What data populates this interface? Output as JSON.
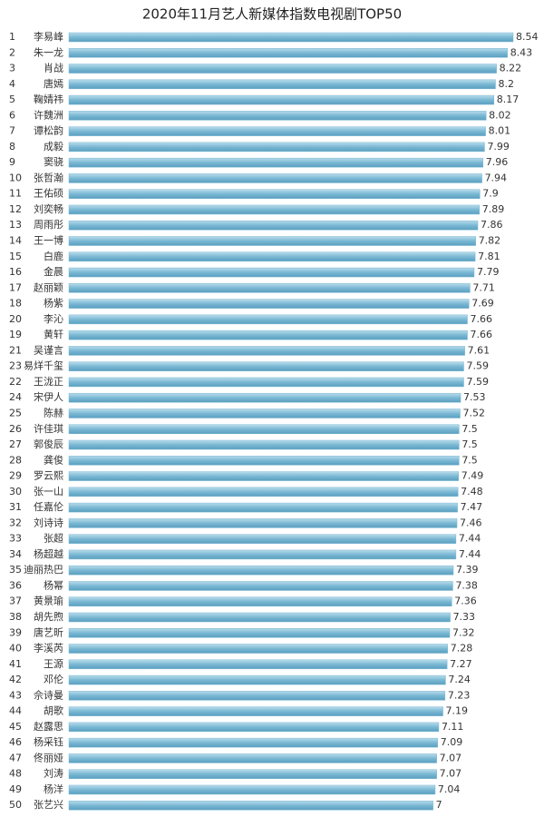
{
  "chart_data": {
    "type": "bar",
    "orientation": "horizontal",
    "title": "2020年11月艺人新媒体指数电视剧TOP50",
    "color": "#7ab8d4",
    "ranks": [
      1,
      2,
      3,
      4,
      5,
      6,
      7,
      8,
      9,
      10,
      11,
      12,
      13,
      14,
      15,
      16,
      17,
      18,
      20,
      19,
      21,
      23,
      22,
      24,
      25,
      26,
      27,
      28,
      29,
      30,
      31,
      32,
      33,
      34,
      35,
      36,
      37,
      38,
      39,
      40,
      41,
      42,
      43,
      44,
      45,
      46,
      47,
      48,
      49,
      50
    ],
    "categories": [
      "李易峰",
      "朱一龙",
      "肖战",
      "唐嫣",
      "鞠婧祎",
      "许魏洲",
      "谭松韵",
      "成毅",
      "窦骁",
      "张哲瀚",
      "王佑硕",
      "刘奕畅",
      "周雨彤",
      "王一博",
      "白鹿",
      "金晨",
      "赵丽颖",
      "杨紫",
      "李沁",
      "黄轩",
      "吴谨言",
      "易烊千玺",
      "王泷正",
      "宋伊人",
      "陈赫",
      "许佳琪",
      "郭俊辰",
      "龚俊",
      "罗云熙",
      "张一山",
      "任嘉伦",
      "刘诗诗",
      "张超",
      "杨超越",
      "迪丽热巴",
      "杨幂",
      "黄景瑜",
      "胡先煦",
      "唐艺昕",
      "李溪芮",
      "王源",
      "邓伦",
      "佘诗曼",
      "胡歌",
      "赵露思",
      "杨采钰",
      "佟丽娅",
      "刘涛",
      "杨洋",
      "张艺兴"
    ],
    "values": [
      8.54,
      8.43,
      8.22,
      8.2,
      8.17,
      8.02,
      8.01,
      7.99,
      7.96,
      7.94,
      7.9,
      7.89,
      7.86,
      7.82,
      7.81,
      7.79,
      7.71,
      7.69,
      7.66,
      7.66,
      7.61,
      7.59,
      7.59,
      7.53,
      7.52,
      7.5,
      7.5,
      7.5,
      7.49,
      7.48,
      7.47,
      7.46,
      7.44,
      7.44,
      7.39,
      7.38,
      7.36,
      7.33,
      7.32,
      7.28,
      7.27,
      7.24,
      7.23,
      7.19,
      7.11,
      7.09,
      7.07,
      7.07,
      7.04,
      7
    ]
  }
}
